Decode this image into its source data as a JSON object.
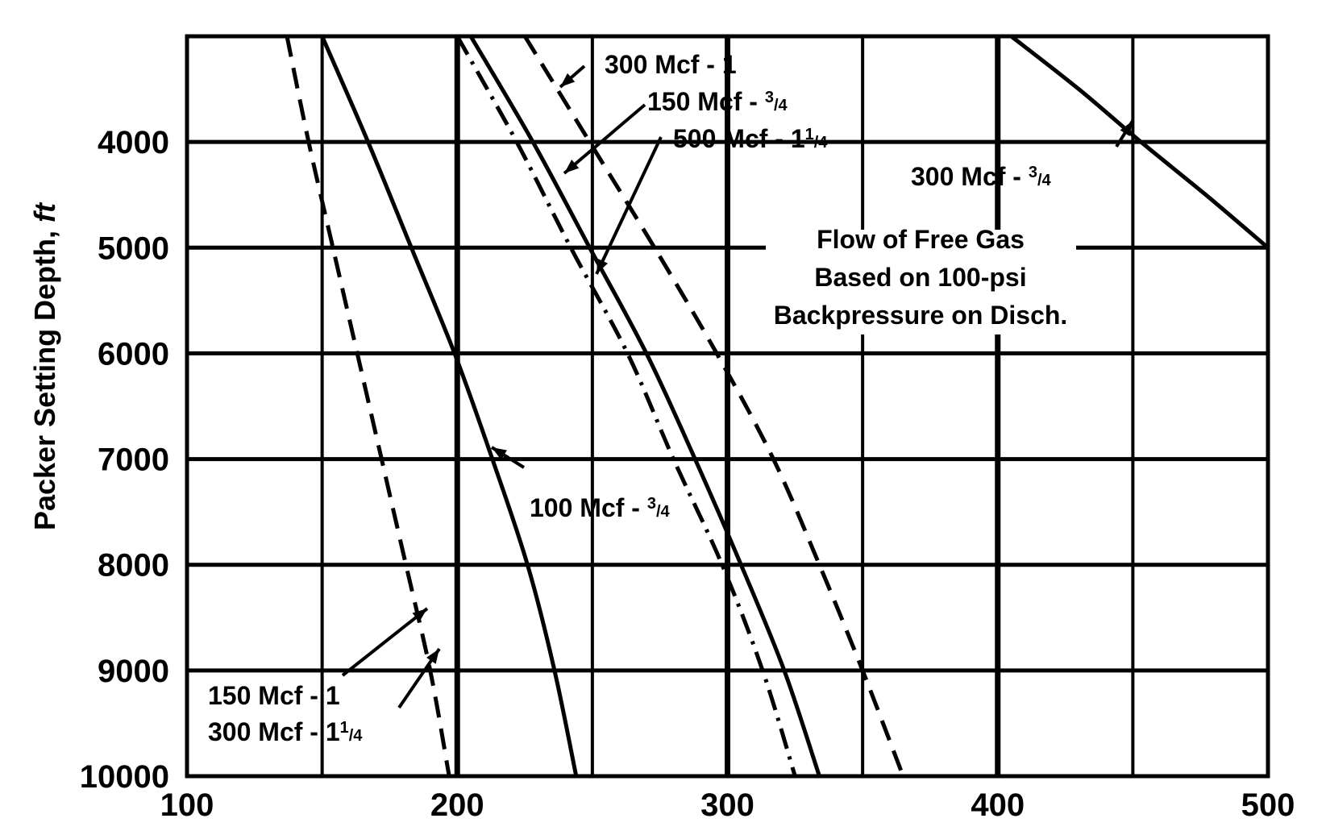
{
  "chart_data": {
    "type": "line",
    "title": "",
    "xlabel": "",
    "ylabel": "Packer Setting Depth, ",
    "ylabel_unit": "ft",
    "xlim": [
      100,
      500
    ],
    "ylim": [
      3000,
      10000
    ],
    "y_inverted": true,
    "grid": true,
    "x_ticks": [
      "100",
      "200",
      "300",
      "400",
      "500"
    ],
    "y_ticks": [
      "4000",
      "5000",
      "6000",
      "7000",
      "8000",
      "9000",
      "10000"
    ],
    "x_tick_values": [
      100,
      200,
      300,
      400,
      500
    ],
    "y_tick_values": [
      4000,
      5000,
      6000,
      7000,
      8000,
      9000,
      10000
    ],
    "note": [
      "Flow of Free Gas",
      "Based on 100-psi",
      "Backpressure on Disch."
    ],
    "series": [
      {
        "name": "150 Mcf - 1",
        "style": "dashed",
        "points": [
          [
            137,
            3000
          ],
          [
            145,
            4000
          ],
          [
            154,
            5000
          ],
          [
            163,
            6000
          ],
          [
            172,
            7000
          ],
          [
            181,
            8000
          ],
          [
            190,
            9000
          ],
          [
            197,
            10000
          ]
        ]
      },
      {
        "name": "300 Mcf - 1 1/4",
        "style": "dashed",
        "points": [
          [
            137,
            3000
          ],
          [
            145,
            4000
          ],
          [
            154,
            5000
          ],
          [
            163,
            6000
          ],
          [
            172,
            7000
          ],
          [
            181,
            8000
          ],
          [
            190,
            9000
          ],
          [
            197,
            10000
          ]
        ]
      },
      {
        "name": "100 Mcf - 3/4",
        "style": "solid",
        "points": [
          [
            150,
            3000
          ],
          [
            167,
            4000
          ],
          [
            183,
            5000
          ],
          [
            199,
            6000
          ],
          [
            213,
            7000
          ],
          [
            226,
            8000
          ],
          [
            236,
            9000
          ],
          [
            244,
            10000
          ]
        ]
      },
      {
        "name": "150 Mcf - 3/4",
        "style": "dashdot",
        "points": [
          [
            200,
            3000
          ],
          [
            222,
            4000
          ],
          [
            242,
            5000
          ],
          [
            263,
            6000
          ],
          [
            280,
            7000
          ],
          [
            298,
            8000
          ],
          [
            313,
            9000
          ],
          [
            325,
            10000
          ]
        ]
      },
      {
        "name": "500 Mcf - 1 1/4",
        "style": "solid",
        "points": [
          [
            205,
            3000
          ],
          [
            228,
            4000
          ],
          [
            249,
            5000
          ],
          [
            270,
            6000
          ],
          [
            288,
            7000
          ],
          [
            305,
            8000
          ],
          [
            321,
            9000
          ],
          [
            334,
            10000
          ]
        ]
      },
      {
        "name": "300 Mcf - 1",
        "style": "dashed",
        "points": [
          [
            225,
            3000
          ],
          [
            249,
            4000
          ],
          [
            273,
            5000
          ],
          [
            296,
            6000
          ],
          [
            317,
            7000
          ],
          [
            334,
            8000
          ],
          [
            350,
            9000
          ],
          [
            365,
            10000
          ]
        ]
      },
      {
        "name": "300 Mcf - 3/4",
        "style": "solid",
        "points": [
          [
            405,
            3000
          ],
          [
            430,
            3500
          ],
          [
            453,
            4000
          ],
          [
            477,
            4500
          ],
          [
            500,
            5000
          ]
        ]
      }
    ],
    "labels": [
      {
        "main": "300 Mcf - 1",
        "frac": ""
      },
      {
        "main": "150 Mcf - ",
        "frac": "3/4"
      },
      {
        "main": "500 Mcf - 1",
        "frac": "1/4"
      },
      {
        "main": "300 Mcf - ",
        "frac": "3/4"
      },
      {
        "main": "100 Mcf - ",
        "frac": "3/4"
      },
      {
        "main": "150 Mcf - 1",
        "frac": ""
      },
      {
        "main": "300 Mcf - 1",
        "frac": "1/4"
      }
    ]
  }
}
